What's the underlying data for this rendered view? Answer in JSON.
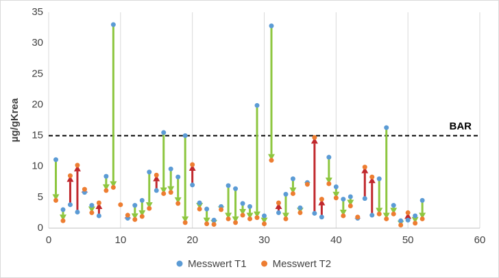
{
  "chart_data": {
    "type": "scatter",
    "y_label": "µg/gKrea",
    "x": [
      1,
      2,
      3,
      4,
      5,
      6,
      7,
      8,
      9,
      10,
      11,
      12,
      13,
      14,
      15,
      16,
      17,
      18,
      19,
      20,
      21,
      22,
      23,
      24,
      25,
      26,
      27,
      28,
      29,
      30,
      31,
      32,
      33,
      34,
      35,
      36,
      37,
      38,
      39,
      40,
      41,
      42,
      43,
      44,
      45,
      46,
      47,
      48,
      49,
      50,
      51,
      52
    ],
    "series": [
      {
        "name": "Messwert T1",
        "color": "#5b9bd5",
        "values": [
          11.1,
          3.0,
          3.8,
          2.6,
          5.8,
          3.7,
          2.0,
          8.4,
          33.0,
          null,
          1.6,
          3.7,
          4.5,
          9.1,
          6.1,
          15.5,
          9.6,
          8.3,
          15.0,
          7.0,
          4.1,
          3.1,
          1.3,
          3.5,
          6.9,
          6.4,
          4.0,
          3.5,
          19.9,
          2.0,
          32.8,
          2.5,
          5.5,
          8.0,
          3.3,
          7.4,
          2.4,
          1.8,
          11.5,
          6.7,
          4.7,
          5.1,
          1.6,
          4.8,
          2.1,
          8.0,
          16.3,
          3.7,
          1.2,
          1.3,
          2.0,
          4.5
        ]
      },
      {
        "name": "Messwert T2",
        "color": "#ed7d31",
        "values": [
          4.5,
          1.2,
          8.5,
          10.2,
          6.3,
          2.5,
          4.1,
          6.1,
          6.6,
          3.8,
          2.1,
          1.4,
          1.9,
          3.2,
          8.6,
          5.6,
          5.8,
          4.0,
          0.9,
          10.3,
          3.1,
          0.7,
          0.6,
          3.0,
          1.5,
          0.9,
          2.1,
          1.5,
          1.7,
          0.7,
          11.0,
          4.1,
          1.5,
          5.6,
          2.5,
          7.1,
          14.7,
          4.7,
          7.2,
          4.9,
          2.0,
          3.6,
          1.8,
          9.9,
          8.3,
          2.3,
          1.5,
          2.3,
          0.5,
          2.5,
          0.8,
          1.5
        ]
      }
    ],
    "arrow_colors": {
      "decrease": "#8dc63f",
      "increase": "#c0282d"
    },
    "reference_line": {
      "value": 15,
      "label": "BAR"
    },
    "xlim": [
      0,
      60
    ],
    "xticks": [
      0,
      10,
      20,
      30,
      40,
      50,
      60
    ],
    "ylim": [
      0,
      35
    ],
    "yticks": [
      0,
      5,
      10,
      15,
      20,
      25,
      30,
      35
    ],
    "grid": true,
    "legend": "bottom"
  }
}
